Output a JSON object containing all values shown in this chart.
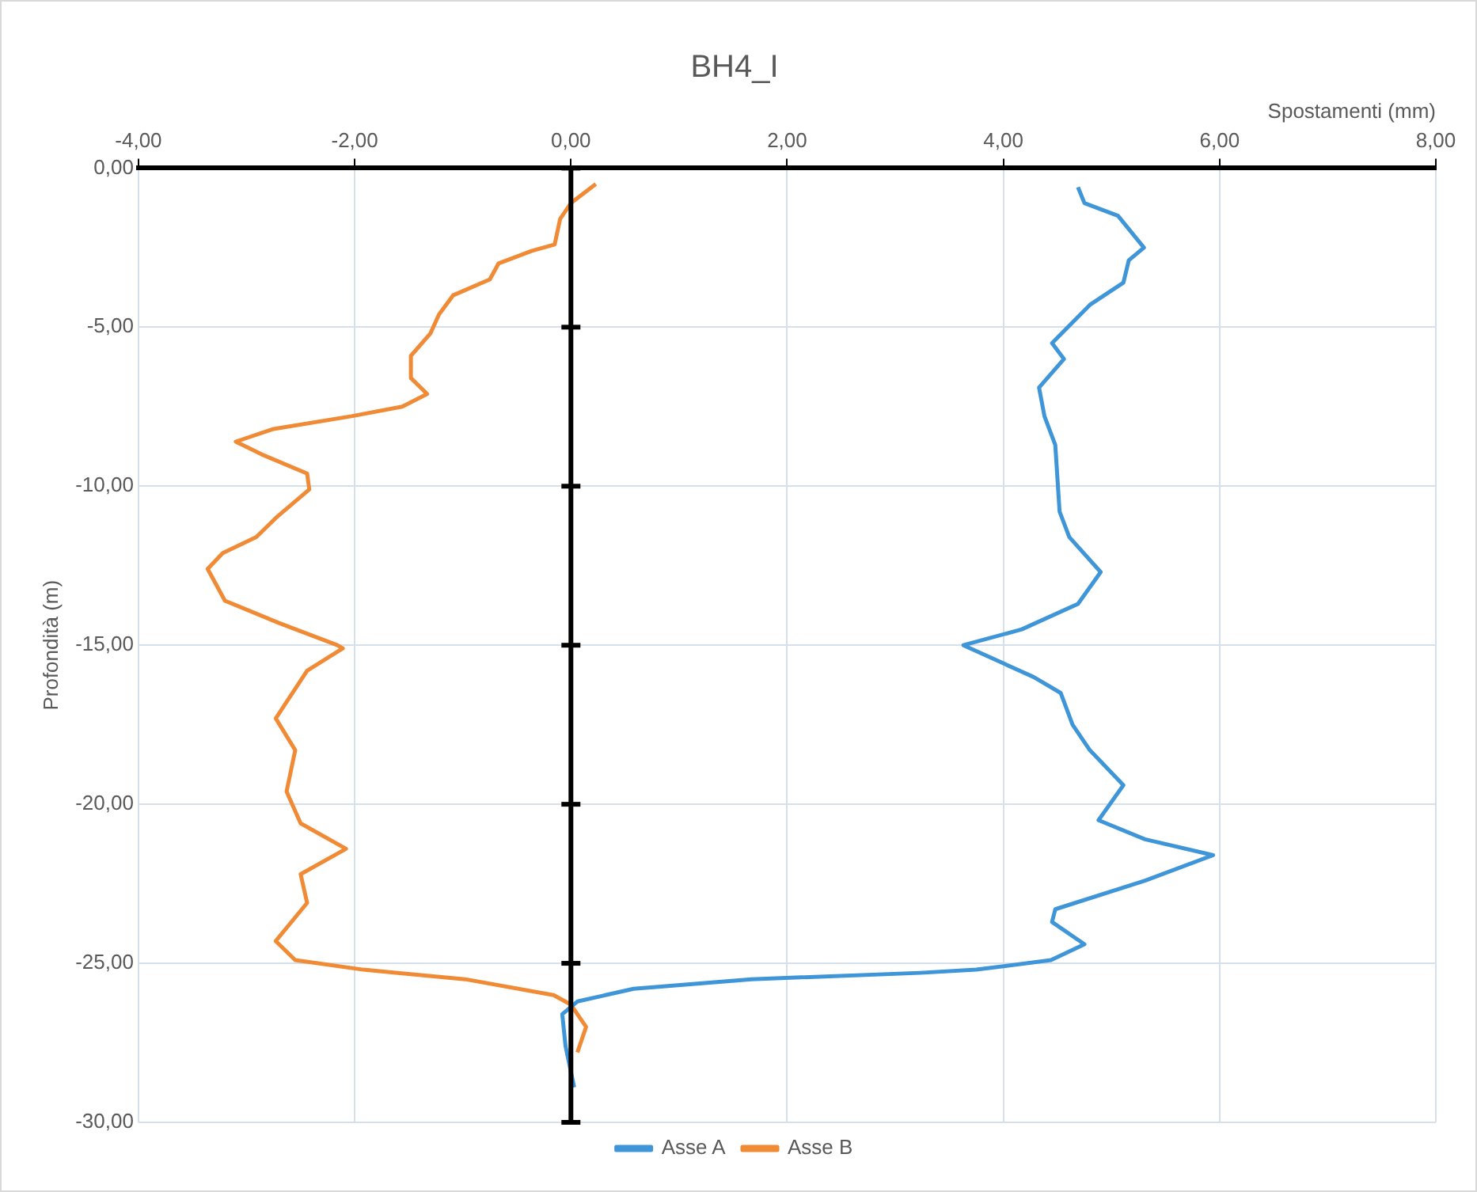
{
  "chart_data": {
    "type": "line",
    "title": "BH4_I",
    "xlabel": "Spostamenti (mm)",
    "ylabel": "Profondità (m)",
    "xlim": [
      -4,
      8
    ],
    "xticks": [
      {
        "value": -4,
        "label": "-4,00"
      },
      {
        "value": -2,
        "label": "-2,00"
      },
      {
        "value": 0,
        "label": "0,00"
      },
      {
        "value": 2,
        "label": "2,00"
      },
      {
        "value": 4,
        "label": "4,00"
      },
      {
        "value": 6,
        "label": "6,00"
      },
      {
        "value": 8,
        "label": "8,00"
      }
    ],
    "ylim": [
      -30,
      0
    ],
    "yticks": [
      {
        "value": 0,
        "label": "0,00"
      },
      {
        "value": -5,
        "label": "-5,00"
      },
      {
        "value": -10,
        "label": "-10,00"
      },
      {
        "value": -15,
        "label": "-15,00"
      },
      {
        "value": -20,
        "label": "-20,00"
      },
      {
        "value": -25,
        "label": "-25,00"
      },
      {
        "value": -30,
        "label": "-30,00"
      }
    ],
    "grid": true,
    "legend": "bottom",
    "marker": "none",
    "line_style": "solid",
    "series": [
      {
        "name": "Asse A",
        "color": "#3e95d8",
        "x": [
          4.69,
          4.75,
          5.06,
          5.3,
          5.16,
          5.11,
          4.8,
          4.45,
          4.56,
          4.33,
          4.38,
          4.48,
          4.52,
          4.61,
          4.9,
          4.69,
          4.17,
          3.63,
          4.28,
          4.53,
          4.64,
          4.8,
          5.11,
          4.88,
          5.31,
          5.94,
          5.31,
          4.48,
          4.45,
          4.75,
          4.44,
          3.75,
          3.23,
          1.67,
          0.58,
          0.06,
          -0.08,
          -0.05,
          0.03
        ],
        "values": [
          -0.6,
          -1.1,
          -1.5,
          -2.5,
          -2.9,
          -3.6,
          -4.3,
          -5.5,
          -6.0,
          -6.9,
          -7.8,
          -8.7,
          -10.8,
          -11.6,
          -12.7,
          -13.7,
          -14.5,
          -15.0,
          -16.0,
          -16.5,
          -17.5,
          -18.3,
          -19.4,
          -20.5,
          -21.1,
          -21.6,
          -22.4,
          -23.3,
          -23.7,
          -24.4,
          -24.9,
          -25.2,
          -25.3,
          -25.5,
          -25.8,
          -26.2,
          -26.6,
          -27.6,
          -28.9
        ]
      },
      {
        "name": "Asse B",
        "color": "#f08a35",
        "x": [
          0.23,
          0.0,
          -0.1,
          -0.15,
          -0.36,
          -0.67,
          -0.75,
          -1.09,
          -1.22,
          -1.3,
          -1.48,
          -1.48,
          -1.33,
          -1.56,
          -2.03,
          -2.75,
          -3.1,
          -2.86,
          -2.44,
          -2.42,
          -2.73,
          -2.91,
          -3.22,
          -3.36,
          -3.2,
          -2.7,
          -2.16,
          -2.11,
          -2.44,
          -2.73,
          -2.55,
          -2.63,
          -2.5,
          -2.08,
          -2.5,
          -2.44,
          -2.73,
          -2.55,
          -1.92,
          -0.98,
          -0.16,
          0.0,
          0.14,
          0.06,
          null
        ],
        "values": [
          -0.5,
          -1.1,
          -1.6,
          -2.4,
          -2.6,
          -3.0,
          -3.5,
          -4.0,
          -4.6,
          -5.2,
          -5.9,
          -6.6,
          -7.1,
          -7.5,
          -7.8,
          -8.2,
          -8.6,
          -9.0,
          -9.6,
          -10.1,
          -11.0,
          -11.6,
          -12.1,
          -12.6,
          -13.6,
          -14.3,
          -15.0,
          -15.1,
          -15.8,
          -17.3,
          -18.3,
          -19.6,
          -20.6,
          -21.4,
          -22.2,
          -23.1,
          -24.3,
          -24.9,
          -25.2,
          -25.5,
          -26.0,
          -26.3,
          -27.0,
          -27.8,
          null
        ]
      }
    ]
  }
}
